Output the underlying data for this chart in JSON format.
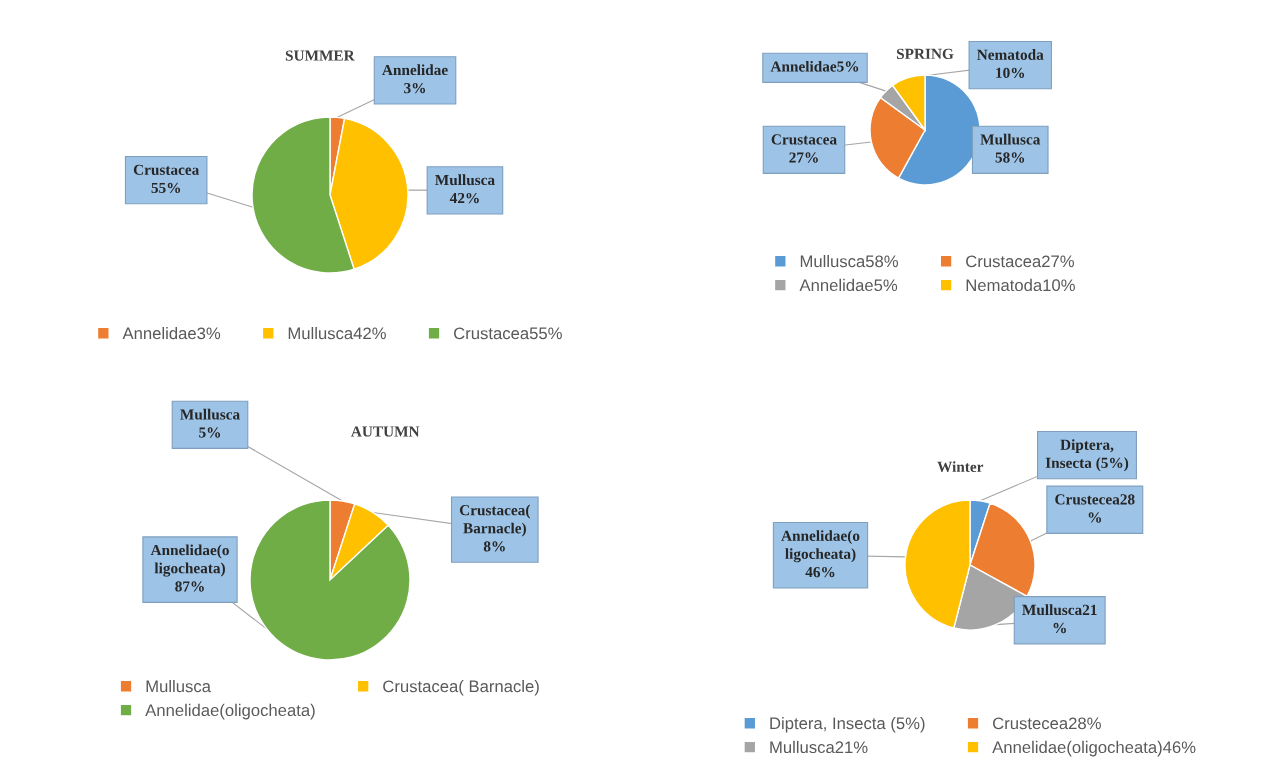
{
  "chart_data": [
    {
      "type": "pie",
      "title": "SUMMER",
      "categories": [
        "Annelidae3%",
        "Mullusca42%",
        "Crustacea55%"
      ],
      "values": [
        3,
        42,
        55
      ],
      "colors": [
        "#ed7d31",
        "#ffc000",
        "#70ad47"
      ],
      "value_labels": [
        "Annelidae\n3%",
        "Mullusca\n42%",
        "Crustacea\n55%"
      ],
      "legend": "bottom"
    },
    {
      "type": "pie",
      "title": "SPRING",
      "categories": [
        "Mullusca58%",
        "Crustacea27%",
        "Annelidae5%",
        "Nematoda10%"
      ],
      "values": [
        58,
        27,
        5,
        10
      ],
      "colors": [
        "#5b9bd5",
        "#ed7d31",
        "#a5a5a5",
        "#ffc000"
      ],
      "value_labels": [
        "Mullusca\n58%",
        "Crustacea\n27%",
        "Annelidae5%",
        "Nematoda\n10%"
      ],
      "legend": "bottom"
    },
    {
      "type": "pie",
      "title": "AUTUMN",
      "categories": [
        "Mullusca",
        "Crustacea( Barnacle)",
        "Annelidae(oligocheata)"
      ],
      "values": [
        5,
        8,
        87
      ],
      "colors": [
        "#ed7d31",
        "#ffc000",
        "#70ad47"
      ],
      "value_labels": [
        "Mullusca\n5%",
        "Crustacea(\nBarnacle)\n8%",
        "Annelidae(o\nligocheata)\n87%"
      ],
      "legend": "bottom"
    },
    {
      "type": "pie",
      "title": "Winter",
      "categories": [
        "Diptera, Insecta (5%)",
        "Crustecea28%",
        "Mullusca21%",
        "Annelidae(oligocheata)46%"
      ],
      "values": [
        5,
        28,
        21,
        46
      ],
      "colors": [
        "#5b9bd5",
        "#ed7d31",
        "#a5a5a5",
        "#ffc000"
      ],
      "value_labels": [
        "Diptera,\nInsecta (5%)",
        "Crustecea28\n%",
        "Mullusca21\n%",
        "Annelidae(o\nligocheata)\n46%"
      ],
      "legend": "bottom"
    }
  ]
}
